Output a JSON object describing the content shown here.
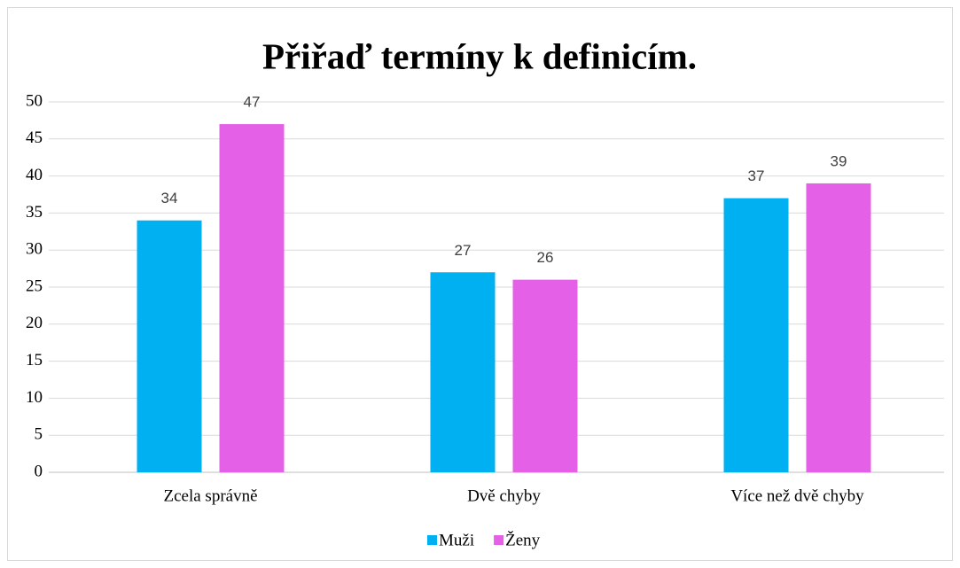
{
  "chart_data": {
    "type": "bar",
    "title": "Přiřaď termíny k definicím.",
    "categories": [
      "Zcela správně",
      "Dvě chyby",
      "Více než dvě chyby"
    ],
    "series": [
      {
        "name": "Muži",
        "color": "#00b0f0",
        "values": [
          34,
          27,
          37
        ]
      },
      {
        "name": "Ženy",
        "color": "#e460e6",
        "values": [
          47,
          26,
          39
        ]
      }
    ],
    "ylim": [
      0,
      50
    ],
    "yticks": [
      0,
      5,
      10,
      15,
      20,
      25,
      30,
      35,
      40,
      45,
      50
    ],
    "grid": true,
    "legend": "bottom"
  }
}
